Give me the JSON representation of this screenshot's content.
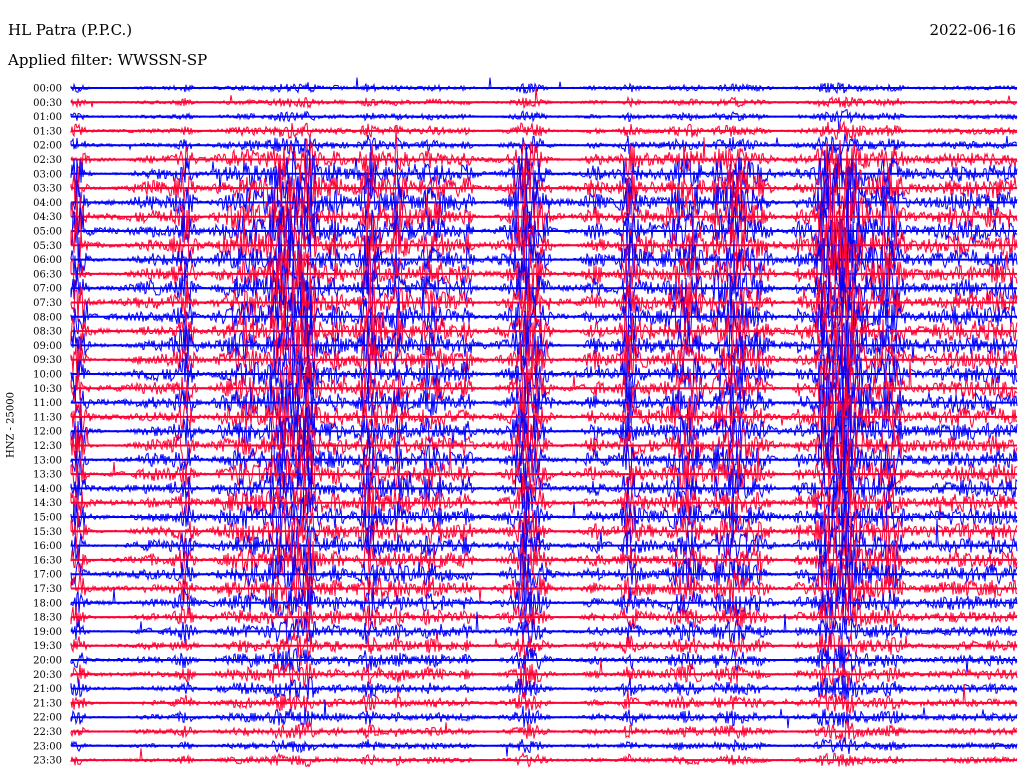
{
  "header": {
    "station": "HL Patra (P.P.C.)",
    "date": "2022-06-16",
    "filter": "Applied filter: WWSSN-SP"
  },
  "chart_data": {
    "type": "line",
    "ylabel": "HNZ - 25000",
    "row_labels": [
      "00:00",
      "00:30",
      "01:00",
      "01:30",
      "02:00",
      "02:30",
      "03:00",
      "03:30",
      "04:00",
      "04:30",
      "05:00",
      "05:30",
      "06:00",
      "06:30",
      "07:00",
      "07:30",
      "08:00",
      "08:30",
      "09:00",
      "09:30",
      "10:00",
      "10:30",
      "11:00",
      "11:30",
      "12:00",
      "12:30",
      "13:00",
      "13:30",
      "14:00",
      "14:30",
      "15:00",
      "15:30",
      "16:00",
      "16:30",
      "17:00",
      "17:30",
      "18:00",
      "18:30",
      "19:00",
      "19:30",
      "20:00",
      "20:30",
      "21:00",
      "21:30",
      "22:00",
      "22:30",
      "23:00",
      "23:30"
    ],
    "series_colors": [
      "#0000ff",
      "#ff0033"
    ],
    "activity_level": [
      0.15,
      0.15,
      0.15,
      0.25,
      0.3,
      0.6,
      0.75,
      0.9,
      0.95,
      0.95,
      0.95,
      0.95,
      0.9,
      0.9,
      0.9,
      0.9,
      0.9,
      0.9,
      0.9,
      0.85,
      0.85,
      0.85,
      0.85,
      0.8,
      0.8,
      0.8,
      0.8,
      0.8,
      0.75,
      0.75,
      0.75,
      0.75,
      0.7,
      0.7,
      0.7,
      0.7,
      0.6,
      0.5,
      0.45,
      0.4,
      0.4,
      0.4,
      0.35,
      0.3,
      0.3,
      0.25,
      0.2,
      0.2
    ]
  }
}
